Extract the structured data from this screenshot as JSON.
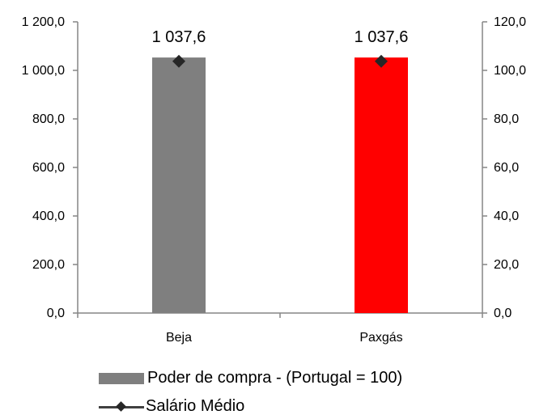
{
  "chart_data": {
    "type": "bar",
    "categories": [
      "Beja",
      "Paxgás"
    ],
    "series": [
      {
        "name": "Poder de compra - (Portugal = 100)",
        "kind": "bar",
        "axis": "left",
        "values": [
          1053,
          1053
        ],
        "colors": [
          "#7f7f7f",
          "#ff0000"
        ]
      },
      {
        "name": "Salário Médio",
        "kind": "line-marker",
        "axis": "right",
        "values": [
          103.76,
          103.76
        ],
        "color": "#262626"
      }
    ],
    "data_labels": [
      "1 037,6",
      "1 037,6"
    ],
    "ylim_left": [
      0,
      1200
    ],
    "yticks_left": [
      "0,0",
      "200,0",
      "400,0",
      "600,0",
      "800,0",
      "1 000,0",
      "1 200,0"
    ],
    "ylim_right": [
      0,
      120
    ],
    "yticks_right": [
      "0,0",
      "20,0",
      "40,0",
      "60,0",
      "80,0",
      "100,0",
      "120,0"
    ],
    "grid": false,
    "legend_position": "bottom"
  },
  "legend": {
    "bar_label": "Poder de compra - (Portugal = 100)",
    "line_label": "Salário Médio"
  }
}
